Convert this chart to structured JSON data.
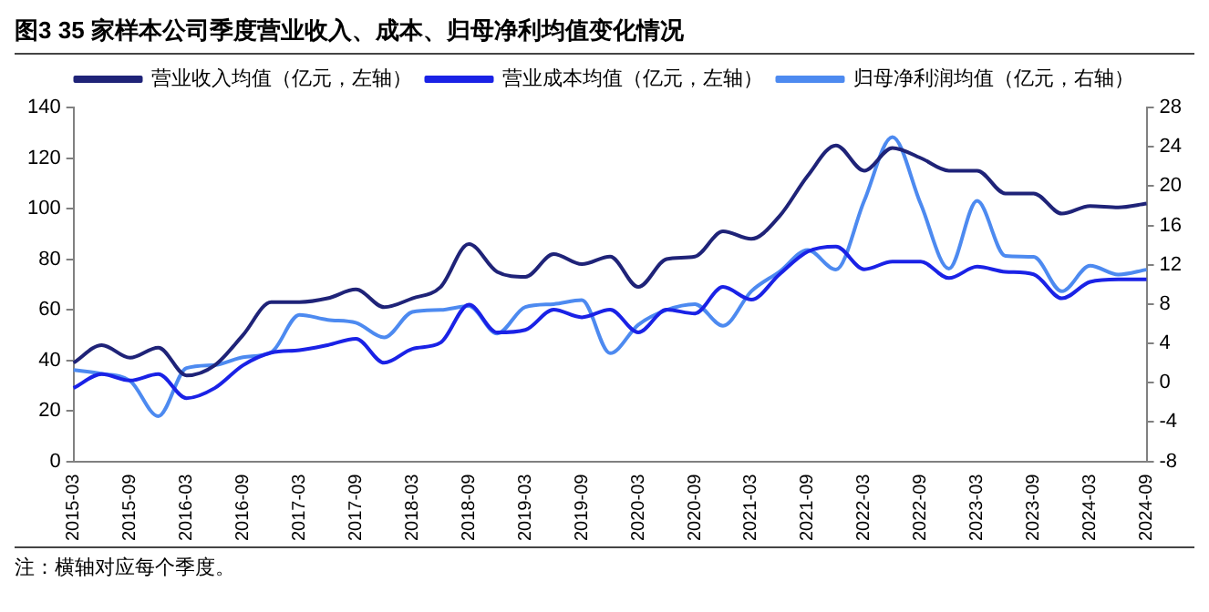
{
  "chart_data": {
    "type": "line",
    "title": "图3  35 家样本公司季度营业收入、成本、归母净利均值变化情况",
    "categories": [
      "2015-03",
      null,
      "2015-09",
      null,
      "2016-03",
      null,
      "2016-09",
      null,
      "2017-03",
      null,
      "2017-09",
      null,
      "2018-03",
      null,
      "2018-09",
      null,
      "2019-03",
      null,
      "2019-09",
      null,
      "2020-03",
      null,
      "2020-09",
      null,
      "2021-03",
      null,
      "2021-09",
      null,
      "2022-03",
      null,
      "2022-09",
      null,
      "2023-03",
      null,
      "2023-09",
      null,
      "2024-03",
      null,
      "2024-09"
    ],
    "series": [
      {
        "name": "营业收入均值（亿元，左轴）",
        "color": "#1f2378",
        "values": [
          39,
          46,
          41,
          45,
          34,
          38,
          50,
          63,
          63,
          64.5,
          68,
          61,
          64.5,
          69,
          86,
          75,
          73,
          82,
          78,
          81,
          69,
          80,
          81,
          91,
          88,
          97,
          113,
          125,
          115,
          124,
          120,
          115,
          115,
          106,
          106,
          98,
          101,
          100.5,
          102
        ]
      },
      {
        "name": "营业成本均值（亿元，左轴）",
        "color": "#1a22e6",
        "values": [
          29,
          34.5,
          32,
          34.5,
          25,
          29,
          38,
          43,
          44,
          46,
          48.5,
          39,
          44.5,
          47,
          62,
          51,
          52,
          60,
          57,
          60,
          51,
          60,
          58.5,
          69,
          64,
          74,
          83,
          85,
          76,
          79,
          79,
          72.5,
          77,
          75,
          74,
          64.5,
          71,
          72,
          72
        ]
      },
      {
        "name": "归母净利润均值（亿元，右轴）",
        "color": "#4d8af0",
        "axis": "y2",
        "values": [
          1.3,
          0.9,
          0.2,
          -3.4,
          1.5,
          1.8,
          2.6,
          3.1,
          6.9,
          6.4,
          6.1,
          4.6,
          7.2,
          7.4,
          7.8,
          5,
          7.7,
          8,
          8.4,
          3,
          5.9,
          7.4,
          8,
          5.8,
          9.3,
          11.3,
          13.5,
          11.5,
          18.5,
          25,
          18.2,
          11.6,
          18.5,
          12.9,
          12.8,
          9.3,
          11.9,
          11,
          11.5
        ]
      }
    ],
    "ylim": [
      0,
      140
    ],
    "yticks": [
      0,
      20,
      40,
      60,
      80,
      100,
      120,
      140
    ],
    "y2lim": [
      -8,
      28
    ],
    "y2ticks": [
      -8,
      -4,
      0,
      4,
      8,
      12,
      16,
      20,
      24,
      28
    ],
    "grid": false,
    "legend": "top",
    "marker": "none",
    "line_style": "solid",
    "annotations": [
      "注：横轴对应每个季度。"
    ]
  }
}
